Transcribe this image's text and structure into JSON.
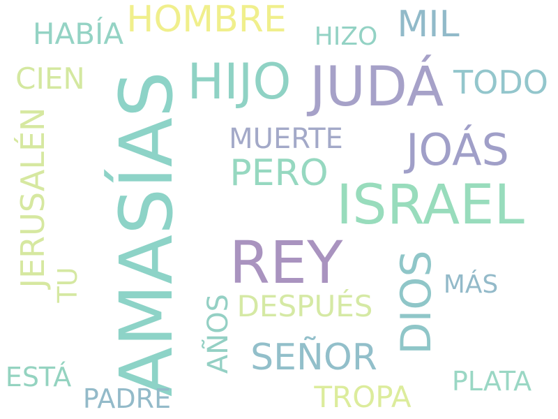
{
  "words": [
    {
      "id": "amasias",
      "text": "AMASÍAS",
      "color": "#8dd3c7"
    },
    {
      "id": "rey",
      "text": "REY",
      "color": "#a993bf"
    },
    {
      "id": "juda",
      "text": "JUDÁ",
      "color": "#a6a1c8"
    },
    {
      "id": "israel",
      "text": "ISRAEL",
      "color": "#98dcbc"
    },
    {
      "id": "hijo",
      "text": "HIJO",
      "color": "#8fd2c4"
    },
    {
      "id": "joas",
      "text": "JOÁS",
      "color": "#a09fc8"
    },
    {
      "id": "dios",
      "text": "DIOS",
      "color": "#8fc6c8"
    },
    {
      "id": "hombre",
      "text": "HOMBRE",
      "color": "#f0ef8c"
    },
    {
      "id": "senor",
      "text": "SEÑOR",
      "color": "#92bfca"
    },
    {
      "id": "pero",
      "text": "PERO",
      "color": "#96d8c0"
    },
    {
      "id": "mil",
      "text": "MIL",
      "color": "#91bac9"
    },
    {
      "id": "todo",
      "text": "TODO",
      "color": "#93c6cc"
    },
    {
      "id": "jerusalen",
      "text": "JERUSALÉN",
      "color": "#d6e8a0"
    },
    {
      "id": "habia",
      "text": "HABÍA",
      "color": "#94d3c4"
    },
    {
      "id": "despues",
      "text": "DESPUÉS",
      "color": "#d5e9a4"
    },
    {
      "id": "tropa",
      "text": "TROPA",
      "color": "#dcec9c"
    },
    {
      "id": "cien",
      "text": "CIEN",
      "color": "#d4e8a0"
    },
    {
      "id": "muerte",
      "text": "MUERTE",
      "color": "#a3a9c8"
    },
    {
      "id": "anos",
      "text": "AÑOS",
      "color": "#94d0c4"
    },
    {
      "id": "plata",
      "text": "PLATA",
      "color": "#9ad7c4"
    },
    {
      "id": "padre",
      "text": "PADRE",
      "color": "#93bac9"
    },
    {
      "id": "esta",
      "text": "ESTÁ",
      "color": "#94d3c0"
    },
    {
      "id": "tu",
      "text": "TU",
      "color": "#d5e8a2"
    },
    {
      "id": "hizo",
      "text": "HIZO",
      "color": "#93d2c4"
    },
    {
      "id": "mas",
      "text": "MÁS",
      "color": "#93bac9"
    }
  ]
}
